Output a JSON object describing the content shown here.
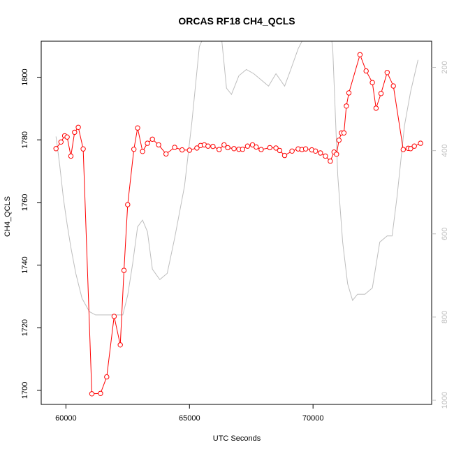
{
  "chart_data": {
    "type": "line",
    "title": "ORCAS RF18 CH4_QCLS",
    "xlabel": "UTC Seconds",
    "ylabel": "CH4_QCLS",
    "xlim": [
      59000,
      74800
    ],
    "ylim": [
      1695.5,
      1811.5
    ],
    "x_ticks": [
      60000,
      65000,
      70000
    ],
    "y_ticks": [
      1700,
      1720,
      1740,
      1760,
      1780,
      1800
    ],
    "y2_ticks": [
      200,
      400,
      600,
      800,
      1000
    ],
    "y2_lim_inverted": [
      137,
      1010
    ],
    "colors": {
      "primary": "#ff0000",
      "secondary": "#bebebe"
    },
    "series": [
      {
        "axis": "left",
        "style": "points-line",
        "x": [
          59600,
          59800,
          59950,
          60050,
          60200,
          60350,
          60500,
          60700,
          61050,
          61400,
          61650,
          61950,
          62200,
          62350,
          62500,
          62750,
          62900,
          63100,
          63300,
          63500,
          63750,
          64050,
          64400,
          64700,
          65000,
          65300,
          65450,
          65600,
          65750,
          65950,
          66200,
          66400,
          66550,
          66800,
          67000,
          67150,
          67350,
          67550,
          67700,
          67900,
          68250,
          68500,
          68650,
          68850,
          69150,
          69400,
          69550,
          69700,
          69950,
          70100,
          70300,
          70500,
          70700,
          70850,
          70950,
          71050,
          71150,
          71250,
          71350,
          71450,
          71900,
          72150,
          72400,
          72550,
          72750,
          73000,
          73250,
          73650,
          73850,
          73950,
          74100,
          74350
        ],
        "y": [
          1777.2,
          1779.3,
          1781.3,
          1780.9,
          1774.8,
          1782.4,
          1784.0,
          1777.1,
          1698.9,
          1699.0,
          1704.3,
          1723.6,
          1714.5,
          1738.3,
          1759.3,
          1777.0,
          1783.8,
          1776.3,
          1778.9,
          1780.2,
          1778.4,
          1775.5,
          1777.6,
          1776.8,
          1776.7,
          1777.4,
          1778.2,
          1778.4,
          1778.0,
          1777.9,
          1776.9,
          1778.4,
          1777.5,
          1777.2,
          1777.0,
          1777.0,
          1778.0,
          1778.4,
          1777.7,
          1776.9,
          1777.5,
          1777.4,
          1776.6,
          1775.0,
          1776.4,
          1777.1,
          1776.9,
          1777.1,
          1776.8,
          1776.4,
          1775.8,
          1774.8,
          1773.2,
          1776.1,
          1775.4,
          1779.9,
          1782.2,
          1782.2,
          1790.8,
          1795.0,
          1807.2,
          1802.0,
          1798.3,
          1790.1,
          1794.8,
          1801.5,
          1797.2,
          1776.9,
          1777.3,
          1777.2,
          1778.0,
          1778.9
        ]
      },
      {
        "axis": "right",
        "style": "line",
        "x": [
          59600,
          59750,
          59900,
          60050,
          60200,
          60400,
          60650,
          60950,
          61200,
          61600,
          62000,
          62300,
          62500,
          62700,
          62900,
          63100,
          63300,
          63500,
          63800,
          64100,
          64400,
          64800,
          65100,
          65400,
          65700,
          66000,
          66200,
          66500,
          66700,
          67000,
          67300,
          67600,
          67900,
          68200,
          68500,
          68850,
          69100,
          69400,
          69700,
          70000,
          70300,
          70600,
          70800,
          71000,
          71200,
          71400,
          71600,
          71800,
          72100,
          72400,
          72700,
          73000,
          73200,
          73400,
          73700,
          73950,
          74250
        ],
        "y": [
          366,
          435,
          515,
          577,
          633,
          695,
          755,
          787,
          795,
          795,
          795,
          795,
          748,
          672,
          583,
          567,
          595,
          685,
          710,
          695,
          610,
          485,
          330,
          150,
          110,
          90,
          70,
          250,
          265,
          220,
          205,
          215,
          230,
          245,
          215,
          245,
          205,
          155,
          120,
          90,
          60,
          40,
          160,
          460,
          620,
          720,
          760,
          745,
          745,
          730,
          620,
          605,
          605,
          510,
          340,
          258,
          182
        ]
      }
    ]
  }
}
